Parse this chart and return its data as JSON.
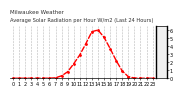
{
  "title": "Milwaukee Weather  -  -  -  -  -  -  -  -  -  -  -  Average Solar Radiation per Hour W/m2 (Last 24 Hours)",
  "title_line1": "Milwaukee Weather",
  "title_line2": "Average Solar Radiation per Hour W/m2 (Last 24 Hours)",
  "hours": [
    0,
    1,
    2,
    3,
    4,
    5,
    6,
    7,
    8,
    9,
    10,
    11,
    12,
    13,
    14,
    15,
    16,
    17,
    18,
    19,
    20,
    21,
    22,
    23
  ],
  "values": [
    0,
    0,
    0,
    0,
    0,
    0,
    1,
    5,
    30,
    80,
    180,
    290,
    430,
    580,
    600,
    510,
    370,
    220,
    90,
    20,
    2,
    0,
    0,
    0
  ],
  "line_color": "#ff0000",
  "bg_color": "#ffffff",
  "plot_bg": "#ffffff",
  "grid_color": "#888888",
  "title_fontsize": 4.0,
  "tick_fontsize": 3.5,
  "ylim": [
    0,
    650
  ],
  "yticks": [
    0,
    100,
    200,
    300,
    400,
    500,
    600
  ],
  "ytick_labels": [
    "0",
    "1",
    "2",
    "3",
    "4",
    "5",
    "6"
  ],
  "xtick_labels": [
    "0",
    "1",
    "2",
    "3",
    "4",
    "5",
    "6",
    "7",
    "8",
    "9",
    "10",
    "11",
    "12",
    "13",
    "14",
    "15",
    "16",
    "17",
    "18",
    "19",
    "20",
    "21",
    "22",
    "23"
  ],
  "right_bar_color": "#000000"
}
